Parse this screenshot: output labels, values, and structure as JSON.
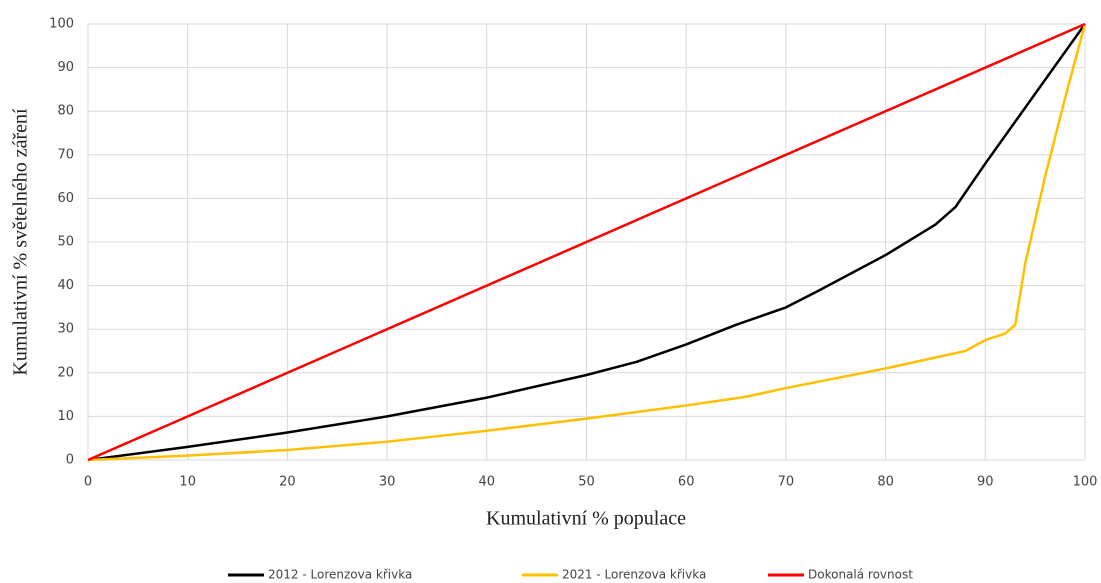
{
  "chart_data": {
    "type": "line",
    "xlabel": "Kumulativní % populace",
    "ylabel": "Kumulativní % světelného záření",
    "xlim": [
      0,
      100
    ],
    "xticks": [
      0,
      10,
      20,
      30,
      40,
      50,
      60,
      70,
      80,
      90,
      100
    ],
    "ylim": [
      0,
      100
    ],
    "yticks": [
      0,
      10,
      20,
      30,
      40,
      50,
      60,
      70,
      80,
      90,
      100
    ],
    "grid": true,
    "legend": "bottom",
    "series": [
      {
        "name": "2012 - Lorenzova křivka",
        "color": "#000000",
        "x": [
          0,
          10,
          20,
          30,
          40,
          50,
          55,
          60,
          65,
          70,
          73,
          80,
          85,
          87,
          90,
          95,
          100
        ],
        "values": [
          0,
          3,
          6.3,
          10,
          14.3,
          19.5,
          22.5,
          26.5,
          31,
          35,
          38.5,
          47,
          54,
          58,
          68,
          84,
          100
        ]
      },
      {
        "name": "2021 - Lorenzova křivka",
        "color": "#ffc000",
        "x": [
          0,
          10,
          20,
          30,
          40,
          50,
          60,
          66,
          70,
          80,
          88,
          90,
          92,
          93,
          94,
          96,
          98,
          100
        ],
        "values": [
          0,
          1,
          2.3,
          4.2,
          6.7,
          9.5,
          12.5,
          14.5,
          16.5,
          21,
          25,
          27.5,
          29,
          31,
          45,
          65,
          83,
          100
        ]
      },
      {
        "name": "Dokonalá rovnost",
        "color": "#ff0000",
        "x": [
          0,
          100
        ],
        "values": [
          0,
          100
        ]
      }
    ]
  }
}
